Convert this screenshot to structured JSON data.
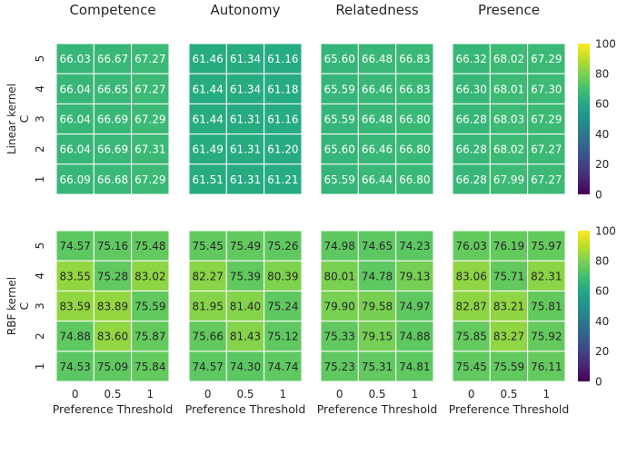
{
  "chart_data": {
    "type": "heatmap",
    "panel_titles": [
      "Competence",
      "Autonomy",
      "Relatedness",
      "Presence"
    ],
    "x_ticks": [
      "0",
      "0.5",
      "1"
    ],
    "y_ticks": [
      "5",
      "4",
      "3",
      "2",
      "1"
    ],
    "xlabel": "Preference Threshold",
    "row_ylabels": [
      "Linear kernel\nC",
      "RBF kernel\nC"
    ],
    "colormap": "viridis",
    "colorbar": {
      "range": [
        0,
        100
      ],
      "ticks": [
        "0",
        "20",
        "40",
        "60",
        "80",
        "100"
      ]
    },
    "rows": [
      {
        "label": "Linear kernel",
        "panels": [
          {
            "title": "Competence",
            "values": [
              [
                66.03,
                66.67,
                67.27
              ],
              [
                66.04,
                66.65,
                67.27
              ],
              [
                66.04,
                66.69,
                67.29
              ],
              [
                66.04,
                66.69,
                67.31
              ],
              [
                66.09,
                66.68,
                67.29
              ]
            ]
          },
          {
            "title": "Autonomy",
            "values": [
              [
                61.46,
                61.34,
                61.16
              ],
              [
                61.44,
                61.34,
                61.18
              ],
              [
                61.44,
                61.31,
                61.16
              ],
              [
                61.49,
                61.31,
                61.2
              ],
              [
                61.51,
                61.31,
                61.21
              ]
            ]
          },
          {
            "title": "Relatedness",
            "values": [
              [
                65.6,
                66.48,
                66.83
              ],
              [
                65.59,
                66.46,
                66.83
              ],
              [
                65.59,
                66.48,
                66.8
              ],
              [
                65.6,
                66.46,
                66.8
              ],
              [
                65.59,
                66.44,
                66.8
              ]
            ]
          },
          {
            "title": "Presence",
            "values": [
              [
                66.32,
                68.02,
                67.29
              ],
              [
                66.3,
                68.01,
                67.3
              ],
              [
                66.28,
                68.03,
                67.29
              ],
              [
                66.28,
                68.02,
                67.27
              ],
              [
                66.28,
                67.99,
                67.27
              ]
            ]
          }
        ]
      },
      {
        "label": "RBF kernel",
        "panels": [
          {
            "title": "Competence",
            "values": [
              [
                74.57,
                75.16,
                75.48
              ],
              [
                83.55,
                75.28,
                83.02
              ],
              [
                83.59,
                83.89,
                75.59
              ],
              [
                74.88,
                83.6,
                75.87
              ],
              [
                74.53,
                75.09,
                75.84
              ]
            ]
          },
          {
            "title": "Autonomy",
            "values": [
              [
                75.45,
                75.49,
                75.26
              ],
              [
                82.27,
                75.39,
                80.39
              ],
              [
                81.95,
                81.4,
                75.24
              ],
              [
                75.66,
                81.43,
                75.12
              ],
              [
                74.57,
                74.3,
                74.74
              ]
            ]
          },
          {
            "title": "Relatedness",
            "values": [
              [
                74.98,
                74.65,
                74.23
              ],
              [
                80.01,
                74.78,
                79.13
              ],
              [
                79.9,
                79.58,
                74.97
              ],
              [
                75.33,
                79.15,
                74.88
              ],
              [
                75.23,
                75.31,
                74.81
              ]
            ]
          },
          {
            "title": "Presence",
            "values": [
              [
                76.03,
                76.19,
                75.97
              ],
              [
                83.06,
                75.71,
                82.31
              ],
              [
                82.87,
                83.21,
                75.81
              ],
              [
                75.85,
                83.27,
                75.92
              ],
              [
                75.45,
                75.59,
                76.11
              ]
            ]
          }
        ]
      }
    ]
  }
}
